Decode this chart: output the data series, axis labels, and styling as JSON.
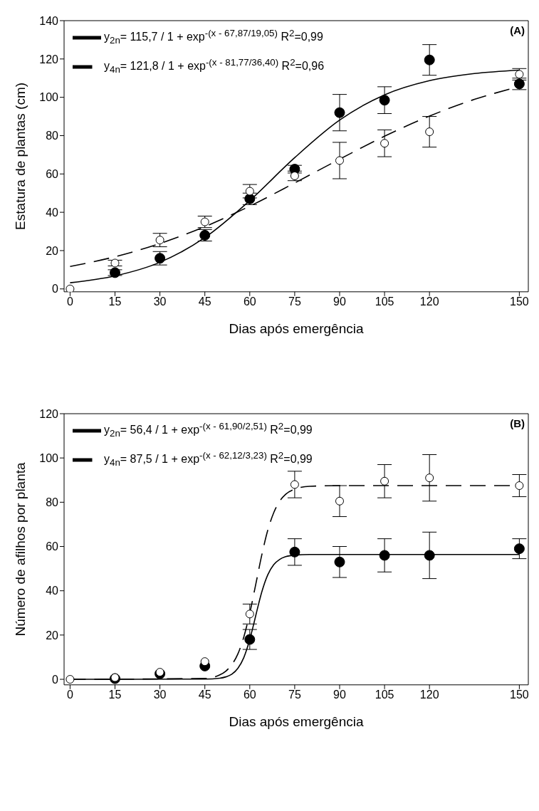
{
  "chart_data": [
    {
      "type": "scatter",
      "xlabel": "Dias após emergência",
      "ylabel": "Estatura de plantas (cm)",
      "annotations": [
        "(A)"
      ],
      "xlim": [
        -2,
        153
      ],
      "xticks": [
        0,
        15,
        30,
        45,
        60,
        75,
        90,
        105,
        120,
        150
      ],
      "ylim": [
        -1.5,
        140
      ],
      "yticks": [
        0,
        20,
        40,
        60,
        80,
        100,
        120,
        140
      ],
      "legend": "top left",
      "series": [
        {
          "type": "line",
          "name": "y$_{2n}$= 115,7 / 1 + exp$^{-(x - 67,87/19,05)}$   R$^{2}$=0,99",
          "color": "#000000",
          "line_style": "solid",
          "x": [
            0,
            15,
            30,
            45,
            60,
            75,
            90,
            105,
            120,
            135,
            150
          ],
          "values": [
            3.2,
            6.8,
            13.9,
            26.8,
            46.1,
            68.5,
            88.1,
            101.3,
            108.7,
            112.4,
            114.2
          ]
        },
        {
          "type": "line",
          "name": "y$_{4n}$= 121,8 / 1 + exp$^{-(x - 81,77/36,40)}$   R$^{2}$=0,96",
          "color": "#000000",
          "line_style": "dashed",
          "x": [
            0,
            15,
            30,
            45,
            60,
            75,
            90,
            105,
            120,
            135,
            150
          ],
          "values": [
            11.7,
            16.8,
            23.7,
            32.5,
            43.2,
            55.3,
            67.7,
            79.7,
            90.2,
            98.9,
            105.6
          ]
        },
        {
          "marker": "circle",
          "color": "#000000",
          "x": [
            15,
            30,
            45,
            60,
            75,
            90,
            105,
            120,
            150
          ],
          "values": [
            8.5,
            16,
            28,
            47,
            62.5,
            92,
            98.5,
            119.5,
            107
          ],
          "errors": [
            1.5,
            3.5,
            3,
            3,
            2,
            9.5,
            7,
            8,
            3
          ]
        },
        {
          "marker": "circle",
          "color": "#ffffff",
          "x": [
            0,
            15,
            30,
            45,
            60,
            75,
            90,
            105,
            120,
            150
          ],
          "values": [
            0,
            13.5,
            25.5,
            35,
            51,
            59,
            67,
            76,
            82,
            112
          ],
          "errors": [
            null,
            1.5,
            3.5,
            3,
            3.5,
            2.5,
            9.5,
            7,
            8,
            3
          ]
        }
      ]
    },
    {
      "type": "scatter",
      "xlabel": "Dias após emergência",
      "ylabel": "Número de afilhos por planta",
      "annotations": [
        "(B)"
      ],
      "xlim": [
        -2,
        153
      ],
      "xticks": [
        0,
        15,
        30,
        45,
        60,
        75,
        90,
        105,
        120,
        150
      ],
      "ylim": [
        -2.5,
        120
      ],
      "yticks": [
        0,
        20,
        40,
        60,
        80,
        100,
        120
      ],
      "legend": "top left",
      "series": [
        {
          "type": "line",
          "name": "y$_{2n}$= 56,4 / 1 + exp$^{-(x - 61,90/2,51)}$   R$^{2}$=0,99",
          "color": "#000000",
          "line_style": "solid",
          "x": [
            0,
            45,
            50,
            52,
            54,
            56,
            58,
            60,
            61,
            62,
            63,
            64,
            66,
            68,
            70,
            72,
            75,
            80,
            150
          ],
          "values": [
            0,
            0.1,
            0.5,
            1.1,
            2.3,
            4.9,
            9.8,
            18,
            23.2,
            28.8,
            34.3,
            39.4,
            47.2,
            51.8,
            54.2,
            55.4,
            56.1,
            56.4,
            56.4
          ]
        },
        {
          "type": "line",
          "name": "y$_{4n}$= 87,5 / 1 + exp$^{-(x - 62,12/3,23)}$   R$^{2}$=0,99",
          "color": "#000000",
          "line_style": "dashed",
          "x": [
            0,
            45,
            50,
            52,
            54,
            56,
            58,
            60,
            62,
            64,
            66,
            68,
            70,
            72,
            75,
            80,
            90,
            150
          ],
          "values": [
            0,
            0.4,
            2,
            3.7,
            6.6,
            11.4,
            19.1,
            29.9,
            42.9,
            56.1,
            67.3,
            75.3,
            80.5,
            83.6,
            85.9,
            87.2,
            87.5,
            87.5
          ]
        },
        {
          "marker": "circle",
          "color": "#000000",
          "x": [
            15,
            30,
            45,
            60,
            75,
            90,
            105,
            120,
            150
          ],
          "values": [
            0.3,
            2.5,
            6,
            18,
            57.5,
            53,
            56,
            56,
            59
          ],
          "errors": [
            null,
            null,
            null,
            4.5,
            6,
            7,
            7.5,
            10.5,
            4.5
          ]
        },
        {
          "marker": "circle",
          "color": "#ffffff",
          "x": [
            0,
            15,
            30,
            45,
            60,
            75,
            90,
            105,
            120,
            150
          ],
          "values": [
            0,
            0.8,
            3.2,
            8,
            29.5,
            88,
            80.5,
            89.5,
            91,
            87.5
          ],
          "errors": [
            null,
            null,
            null,
            null,
            4.5,
            6,
            7,
            7.5,
            10.5,
            5
          ]
        }
      ]
    }
  ]
}
